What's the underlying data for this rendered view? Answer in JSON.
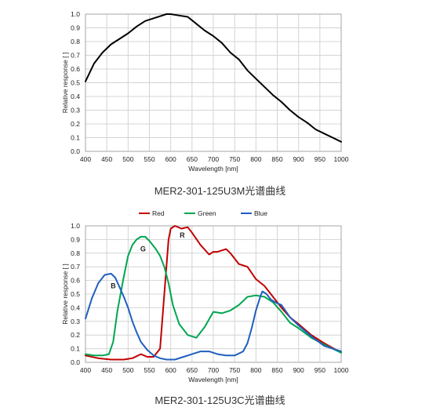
{
  "chart_data": [
    {
      "type": "line",
      "title": "",
      "xlabel": "Wavelength [nm]",
      "ylabel": "Relative response [ ]",
      "xlim": [
        400,
        1000
      ],
      "ylim": [
        0,
        1.0
      ],
      "xticks": [
        "400",
        "450",
        "500",
        "550",
        "600",
        "650",
        "700",
        "750",
        "800",
        "850",
        "900",
        "950",
        "1000"
      ],
      "yticks": [
        "0.0",
        "0.1",
        "0.2",
        "0.3",
        "0.4",
        "0.5",
        "0.6",
        "0.7",
        "0.8",
        "0.9",
        "1.0"
      ],
      "grid": true,
      "legend": null,
      "series": [
        {
          "color": "#000000",
          "x": [
            400,
            420,
            440,
            460,
            480,
            500,
            520,
            540,
            560,
            580,
            590,
            600,
            620,
            640,
            660,
            680,
            700,
            720,
            740,
            760,
            780,
            800,
            820,
            840,
            860,
            880,
            900,
            920,
            940,
            960,
            980,
            1000
          ],
          "y": [
            0.51,
            0.64,
            0.72,
            0.78,
            0.82,
            0.86,
            0.91,
            0.95,
            0.97,
            0.99,
            1.0,
            1.0,
            0.99,
            0.98,
            0.93,
            0.88,
            0.84,
            0.79,
            0.72,
            0.67,
            0.59,
            0.53,
            0.47,
            0.41,
            0.36,
            0.3,
            0.25,
            0.21,
            0.16,
            0.13,
            0.1,
            0.07
          ]
        }
      ],
      "caption": "MER2-301-125U3M光谱曲线"
    },
    {
      "type": "line",
      "title": "",
      "xlabel": "Wavelength [nm]",
      "ylabel": "Relative response [ ]",
      "xlim": [
        400,
        1000
      ],
      "ylim": [
        0,
        1.0
      ],
      "xticks": [
        "400",
        "450",
        "500",
        "550",
        "600",
        "650",
        "700",
        "750",
        "800",
        "850",
        "900",
        "950",
        "1000"
      ],
      "yticks": [
        "0.0",
        "0.1",
        "0.2",
        "0.3",
        "0.4",
        "0.5",
        "0.6",
        "0.7",
        "0.8",
        "0.9",
        "1.0"
      ],
      "grid": true,
      "legend": "top-center",
      "series": [
        {
          "name": "Red",
          "label": "R",
          "color": "#c00000",
          "x": [
            400,
            430,
            460,
            490,
            510,
            530,
            545,
            560,
            575,
            585,
            595,
            600,
            610,
            625,
            640,
            650,
            670,
            690,
            700,
            710,
            730,
            740,
            760,
            780,
            800,
            820,
            840,
            860,
            880,
            900,
            930,
            960,
            1000
          ],
          "y": [
            0.05,
            0.03,
            0.02,
            0.02,
            0.03,
            0.06,
            0.04,
            0.04,
            0.1,
            0.5,
            0.9,
            0.98,
            1.0,
            0.98,
            0.99,
            0.95,
            0.86,
            0.79,
            0.81,
            0.81,
            0.83,
            0.8,
            0.72,
            0.7,
            0.61,
            0.56,
            0.48,
            0.4,
            0.33,
            0.28,
            0.2,
            0.14,
            0.07
          ]
        },
        {
          "name": "Green",
          "label": "G",
          "color": "#00a550",
          "x": [
            400,
            420,
            440,
            455,
            465,
            475,
            490,
            500,
            510,
            520,
            530,
            540,
            550,
            565,
            575,
            585,
            595,
            605,
            620,
            640,
            660,
            680,
            700,
            720,
            740,
            760,
            780,
            800,
            820,
            840,
            860,
            880,
            900,
            930,
            960,
            1000
          ],
          "y": [
            0.06,
            0.05,
            0.05,
            0.06,
            0.15,
            0.38,
            0.63,
            0.78,
            0.86,
            0.9,
            0.92,
            0.92,
            0.89,
            0.83,
            0.78,
            0.7,
            0.58,
            0.42,
            0.28,
            0.2,
            0.18,
            0.26,
            0.37,
            0.36,
            0.38,
            0.42,
            0.48,
            0.49,
            0.48,
            0.44,
            0.37,
            0.29,
            0.25,
            0.18,
            0.13,
            0.07
          ]
        },
        {
          "name": "Blue",
          "label": "B",
          "color": "#1f5fbf",
          "x": [
            400,
            415,
            430,
            445,
            460,
            470,
            480,
            490,
            500,
            510,
            520,
            530,
            545,
            560,
            575,
            590,
            610,
            630,
            650,
            670,
            690,
            710,
            730,
            750,
            770,
            780,
            790,
            800,
            810,
            815,
            825,
            835,
            845,
            860,
            880,
            900,
            930,
            960,
            1000
          ],
          "y": [
            0.32,
            0.47,
            0.58,
            0.64,
            0.65,
            0.62,
            0.55,
            0.48,
            0.4,
            0.3,
            0.22,
            0.15,
            0.09,
            0.05,
            0.03,
            0.02,
            0.02,
            0.04,
            0.06,
            0.08,
            0.08,
            0.06,
            0.05,
            0.05,
            0.08,
            0.14,
            0.25,
            0.38,
            0.48,
            0.52,
            0.5,
            0.46,
            0.44,
            0.42,
            0.33,
            0.27,
            0.19,
            0.12,
            0.08
          ]
        }
      ],
      "annotations": [
        {
          "text": "R",
          "x": 627,
          "y": 0.93
        },
        {
          "text": "G",
          "x": 535,
          "y": 0.83
        },
        {
          "text": "B",
          "x": 465,
          "y": 0.56
        }
      ],
      "caption": "MER2-301-125U3C光谱曲线"
    }
  ]
}
